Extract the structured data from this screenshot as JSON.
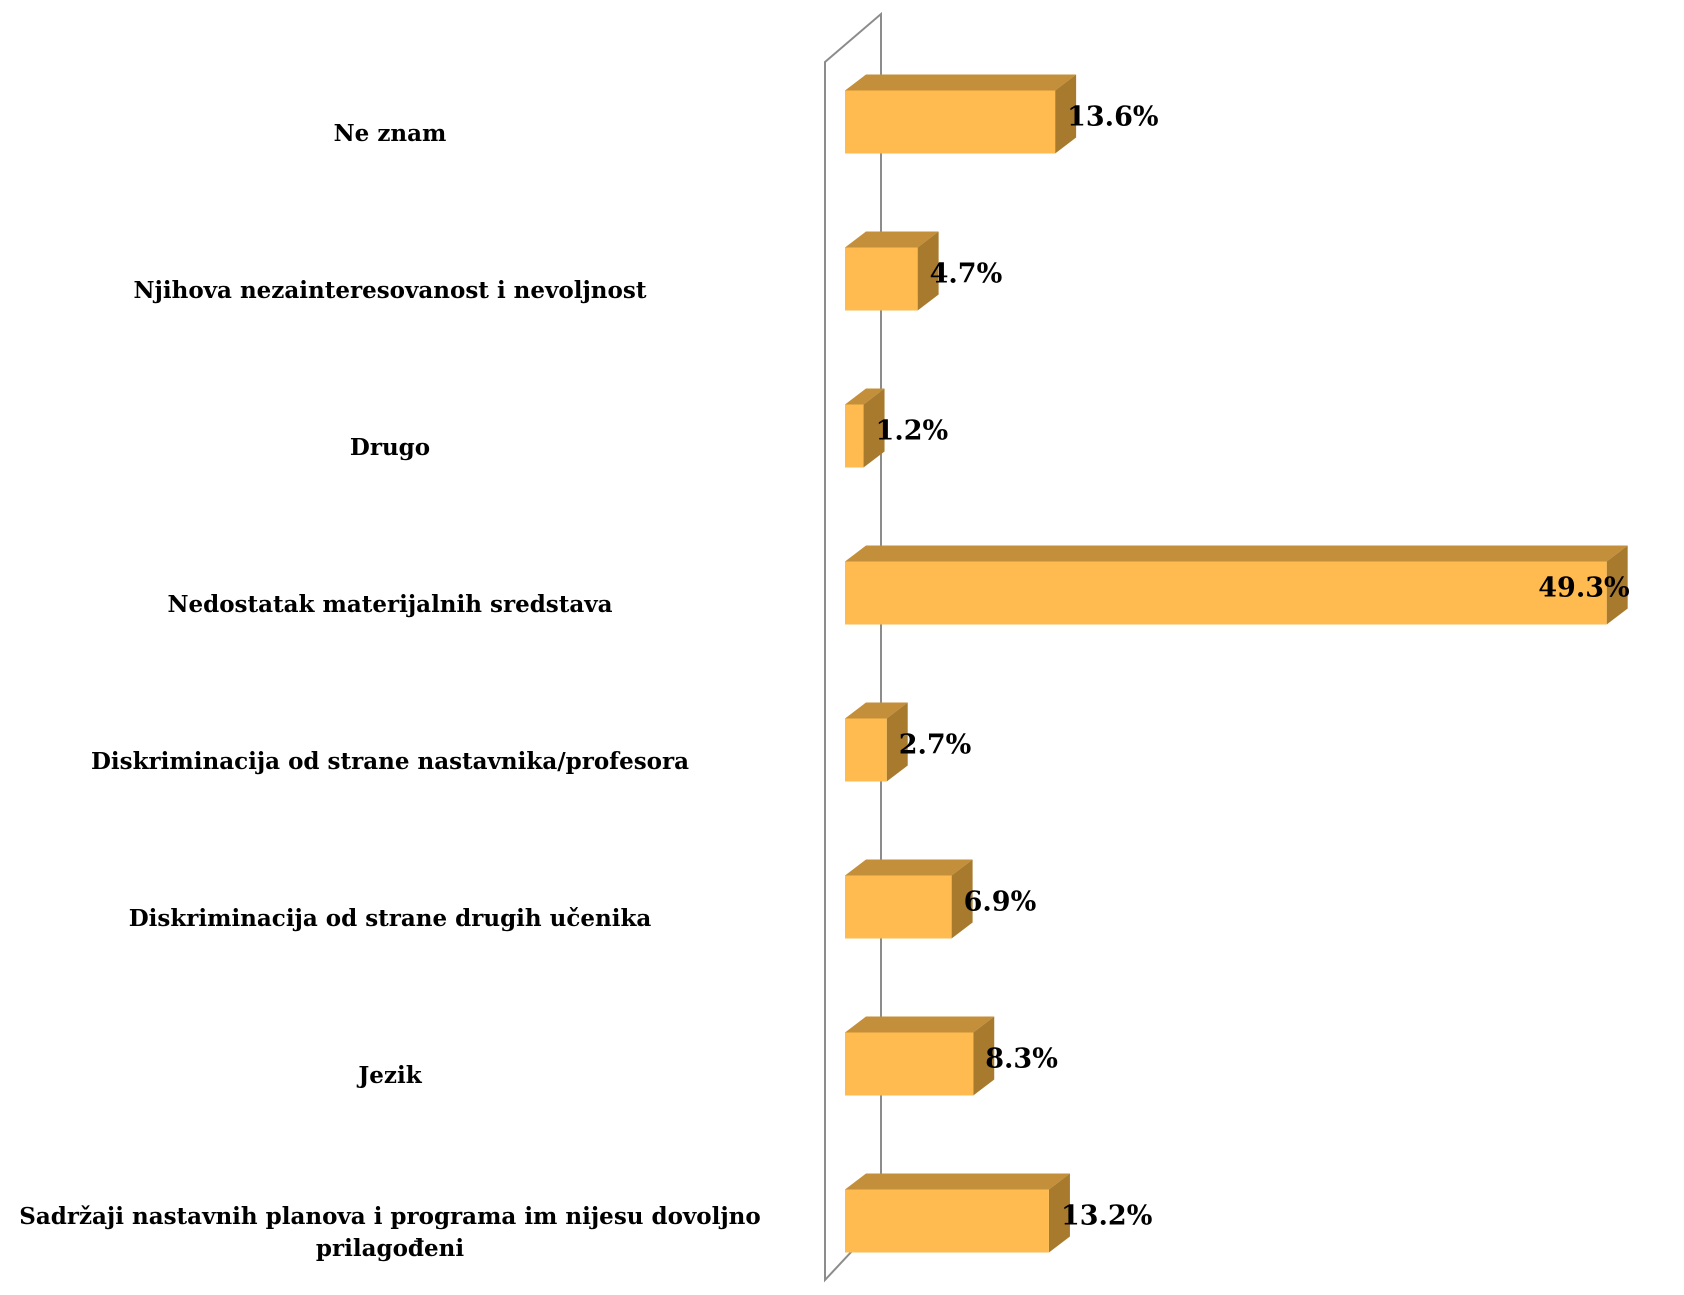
{
  "chart_data": {
    "type": "bar",
    "orientation": "horizontal",
    "style": "3d",
    "title": "",
    "xlabel": "",
    "ylabel": "",
    "categories": [
      "Ne znam",
      "Njihova nezainteresovanost i nevoljnost",
      "Drugo",
      "Nedostatak materijalnih sredstava",
      "Diskriminacija od strane nastavnika/profesora",
      "Diskriminacija od strane drugih učenika",
      "Jezik",
      "Sadržaji nastavnih planova i programa im nijesu dovoljno prilagođeni"
    ],
    "values": [
      13.6,
      4.7,
      1.2,
      49.3,
      2.7,
      6.9,
      8.3,
      13.2
    ],
    "value_labels": [
      "13.6%",
      "4.7%",
      "1.2%",
      "49.3%",
      "2.7%",
      "6.9%",
      "8.3%",
      "13.2%"
    ],
    "xlim": [
      0,
      50
    ],
    "grid": false,
    "legend": "none",
    "colors": {
      "bar_front": "#FFBB4F",
      "bar_top": "#C48F3A",
      "bar_side": "#A87A2E",
      "axis_wall": "#8C8C8C"
    }
  }
}
